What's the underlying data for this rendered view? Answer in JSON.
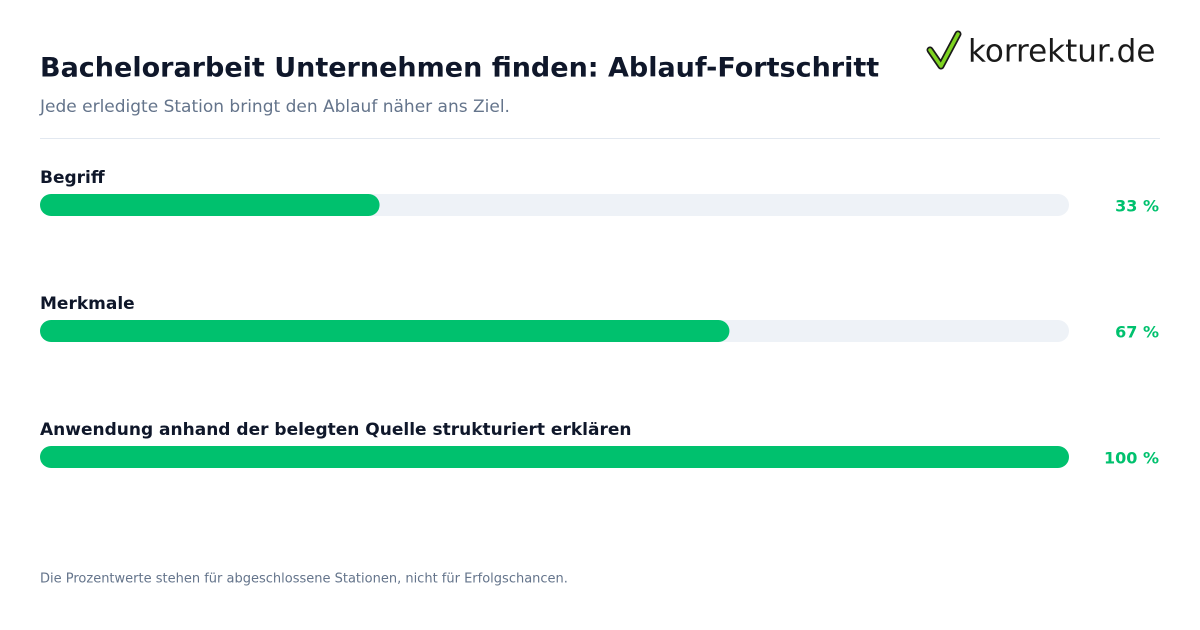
{
  "chart_data": {
    "type": "progress",
    "title": "Bachelorarbeit Unternehmen finden: Ablauf-Fortschritt",
    "subtitle": "Jede erledigte Station bringt den Ablauf näher ans Ziel.",
    "logo": "korrektur.de",
    "categories": [
      "Begriff",
      "Merkmale",
      "Anwendung anhand der belegten Quelle strukturiert erklären"
    ],
    "values": [
      33,
      67,
      100
    ],
    "value_labels": [
      "33 %",
      "67 %",
      "100 %"
    ],
    "xlim": [
      0,
      100
    ],
    "color": "#00c16e",
    "track_color": "#eef2f7",
    "note": "Die Prozentwerte stehen für abgeschlossene Stationen, nicht für Erfolgschancen."
  }
}
